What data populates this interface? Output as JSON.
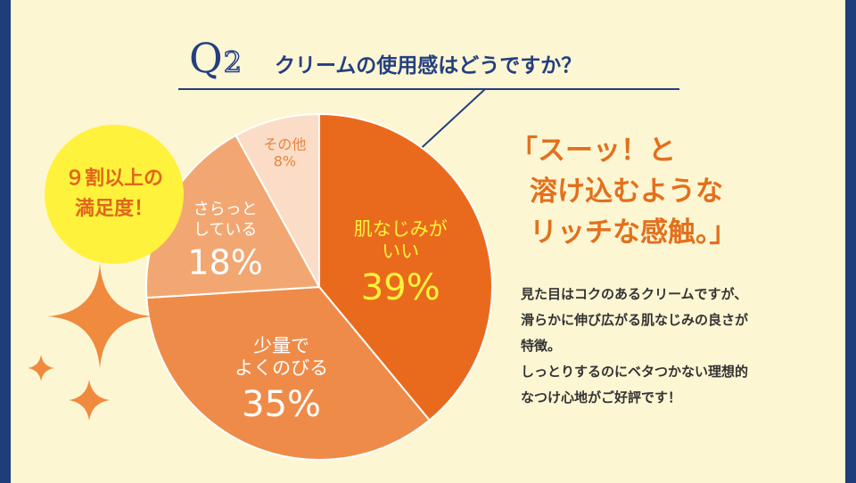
{
  "question": {
    "mark": "Q",
    "number": "2",
    "text": "クリームの使用感はどうですか？"
  },
  "badge": {
    "line1": "９割以上の",
    "line2": "満足度！"
  },
  "headline": {
    "line1": "「スーッ！と",
    "line2": "溶け込むような",
    "line3": "リッチな感触。」"
  },
  "description": {
    "line1": "見た目はコクのあるクリームですが、",
    "line2": "滑らかに伸び広がる肌なじみの良さが",
    "line3": "特徴。",
    "line4": "しっとりするのにベタつかない理想的",
    "line5": "なつけ心地がご好評です！"
  },
  "colors": {
    "navy": "#243f80",
    "slice_fit": "#ea6a1d",
    "slice_spread": "#ef8b48",
    "slice_smooth": "#f2a772",
    "slice_other": "#fbdcc6",
    "highlight_text": "#fff23c"
  },
  "chart_data": {
    "type": "pie",
    "title": "",
    "slices": [
      {
        "name": "肌なじみが いい",
        "value": 39,
        "label": "39%",
        "name_lines": [
          "肌なじみが",
          "いい"
        ],
        "color": "#ea6a1d",
        "text_color": "#fff23c"
      },
      {
        "name": "少量で よくのびる",
        "value": 35,
        "label": "35%",
        "name_lines": [
          "少量で",
          "よくのびる"
        ],
        "color": "#ef8b48",
        "text_color": "#ffffff"
      },
      {
        "name": "さらっと している",
        "value": 18,
        "label": "18%",
        "name_lines": [
          "さらっと",
          "している"
        ],
        "color": "#f2a772",
        "text_color": "#ffffff"
      },
      {
        "name": "その他",
        "value": 8,
        "label": "8%",
        "name_lines": [
          "その他"
        ],
        "color": "#fbdcc6",
        "text_color": "#e88440"
      }
    ]
  }
}
